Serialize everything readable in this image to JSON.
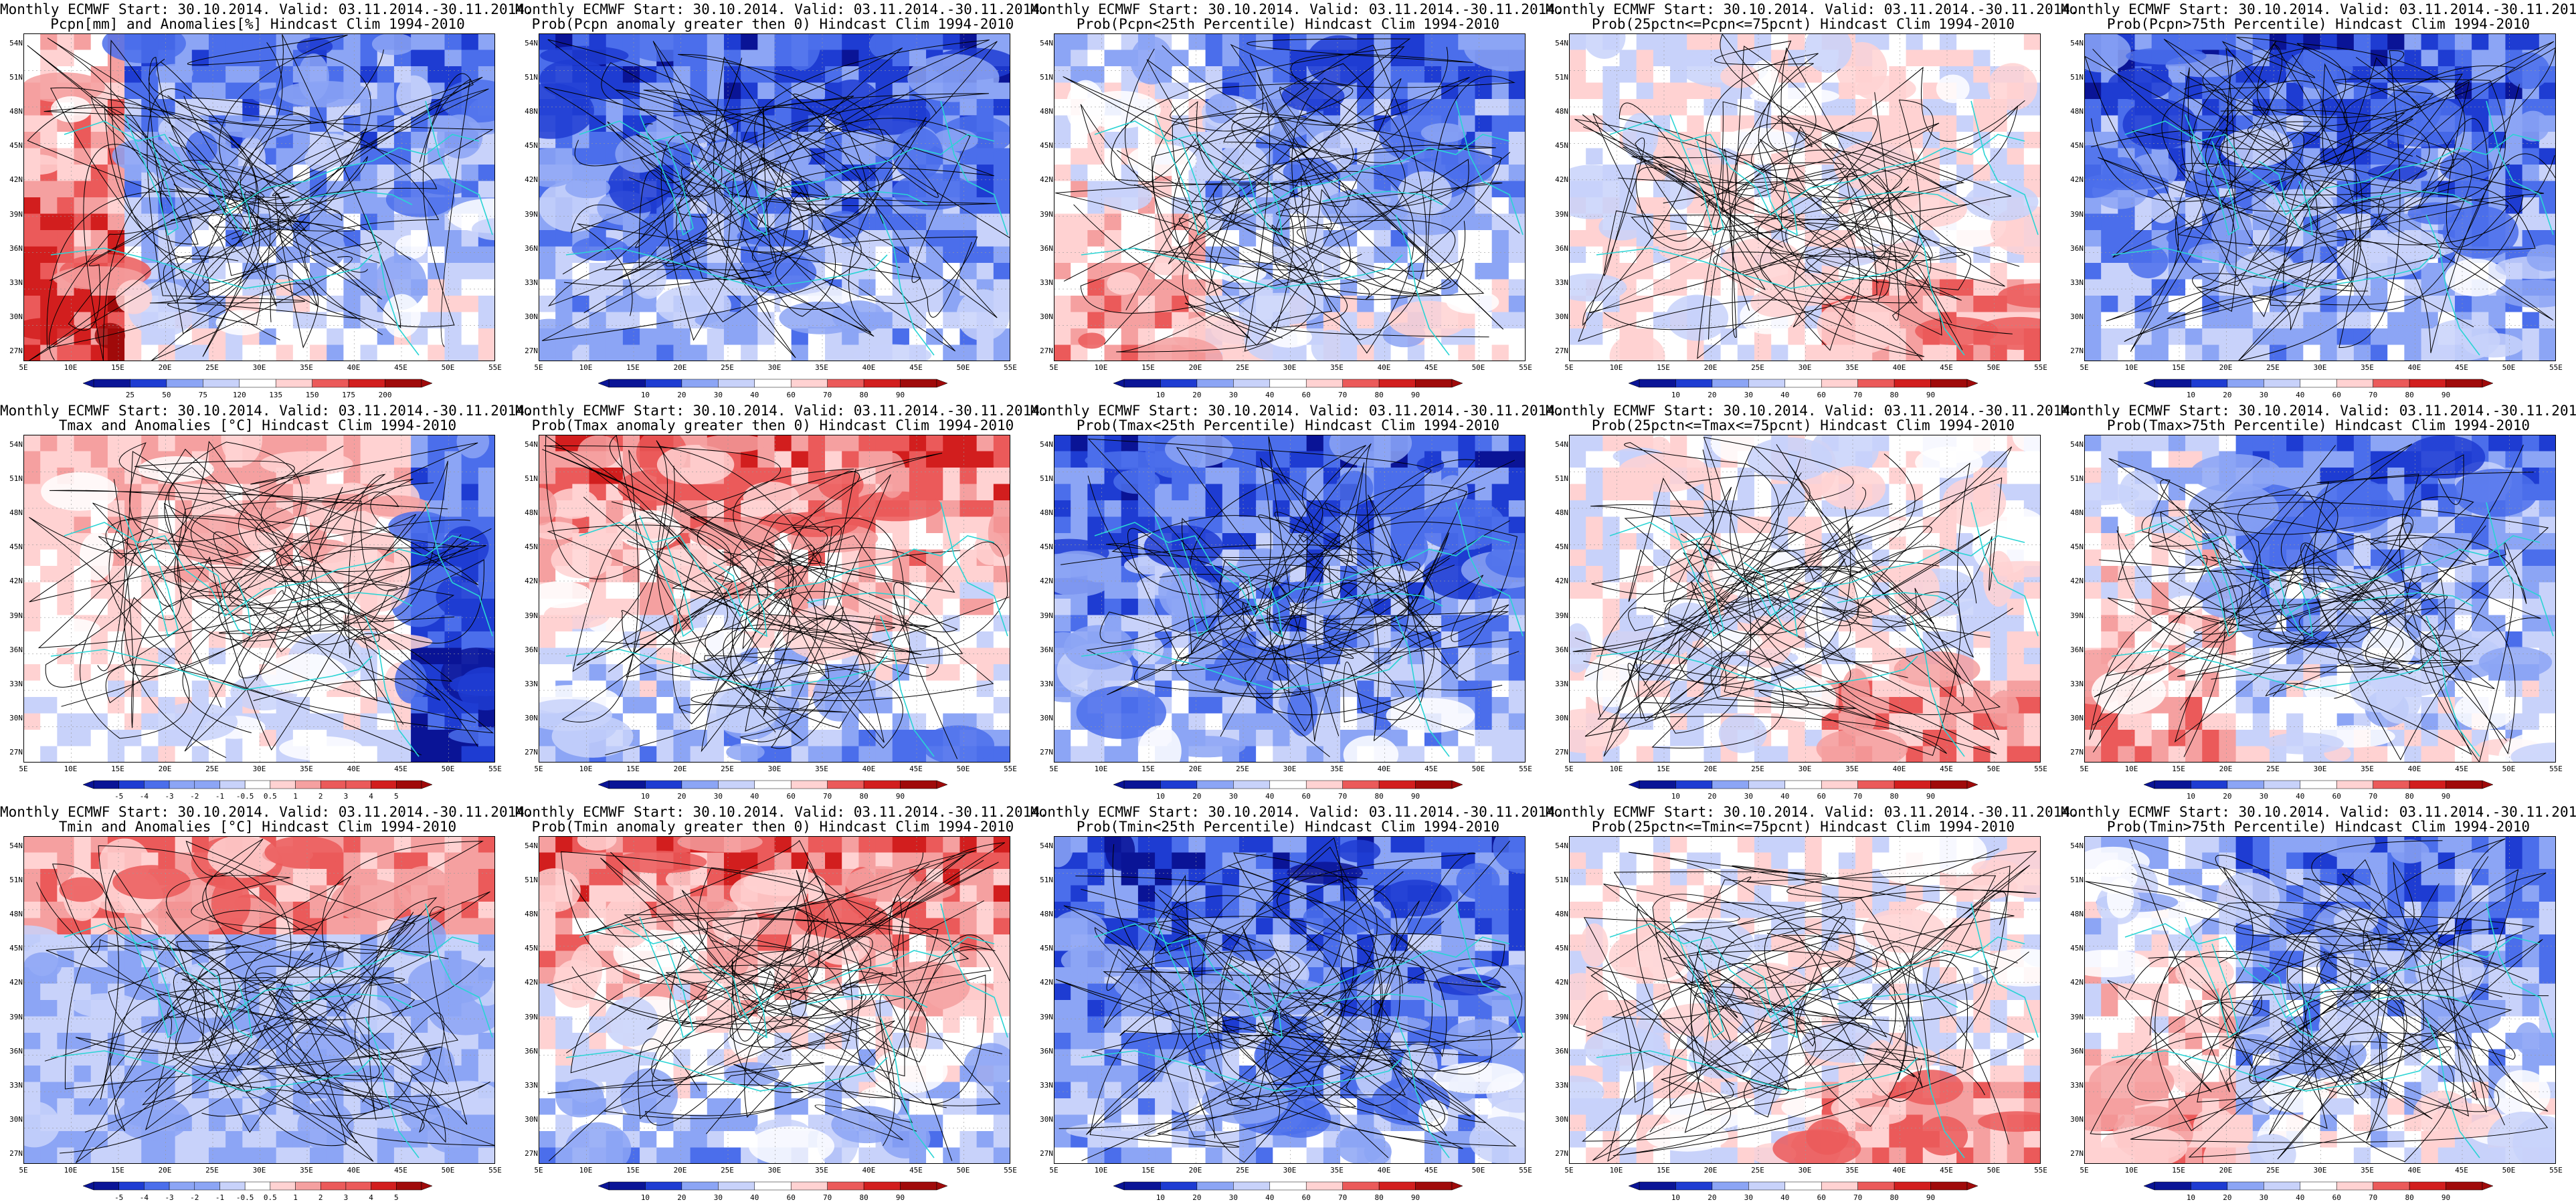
{
  "header_line": "Monthly ECMWF Start: 30.10.2014. Valid: 03.11.2014.-30.11.2014.",
  "lat_ticks": [
    "54N",
    "51N",
    "48N",
    "45N",
    "42N",
    "39N",
    "36N",
    "33N",
    "30N",
    "27N"
  ],
  "lon_ticks": [
    "5E",
    "10E",
    "15E",
    "20E",
    "25E",
    "30E",
    "35E",
    "40E",
    "45E",
    "50E",
    "55E"
  ],
  "colors": {
    "prob_scale": [
      "#0a1496",
      "#1e3cd2",
      "#4b6eeb",
      "#8ca5f5",
      "#c8d2fa",
      "#ffffff",
      "#ffd2d2",
      "#f5a0a0",
      "#eb5a5a",
      "#d21e1e",
      "#a00a0a"
    ],
    "coast": "#2ad4d4",
    "contour": "#000000"
  },
  "rows": [
    {
      "panels": [
        {
          "subtitle": "Pcpn[mm] and Anomalies[%] Hindcast Clim 1994-2010",
          "scheme": "pcpn",
          "legend": [
            "25",
            "50",
            "75",
            "120",
            "135",
            "150",
            "175",
            "200"
          ]
        },
        {
          "subtitle": "Prob(Pcpn anomaly greater then 0) Hindcast Clim 1994-2010",
          "scheme": "prob_low",
          "legend": [
            "10",
            "20",
            "30",
            "40",
            "60",
            "70",
            "80",
            "90"
          ]
        },
        {
          "subtitle": "Prob(Pcpn<25th Percentile) Hindcast Clim 1994-2010",
          "scheme": "prob_mid",
          "legend": [
            "10",
            "20",
            "30",
            "40",
            "60",
            "70",
            "80",
            "90"
          ]
        },
        {
          "subtitle": "Prob(25pctn<=Pcpn<=75pcnt) Hindcast Clim 1994-2010",
          "scheme": "prob_neutral",
          "legend": [
            "10",
            "20",
            "30",
            "40",
            "60",
            "70",
            "80",
            "90"
          ]
        },
        {
          "subtitle": "Prob(Pcpn>75th Percentile) Hindcast Clim 1994-2010",
          "scheme": "prob_low",
          "legend": [
            "10",
            "20",
            "30",
            "40",
            "60",
            "70",
            "80",
            "90"
          ]
        }
      ]
    },
    {
      "panels": [
        {
          "subtitle": "Tmax and Anomalies [°C] Hindcast Clim 1994-2010",
          "scheme": "anom_warm",
          "legend": [
            "-5",
            "-4",
            "-3",
            "-2",
            "-1",
            "-0.5",
            "0.5",
            "1",
            "2",
            "3",
            "4",
            "5"
          ]
        },
        {
          "subtitle": "Prob(Tmax anomaly greater then 0) Hindcast Clim 1994-2010",
          "scheme": "prob_high",
          "legend": [
            "10",
            "20",
            "30",
            "40",
            "60",
            "70",
            "80",
            "90"
          ]
        },
        {
          "subtitle": "Prob(Tmax<25th Percentile) Hindcast Clim 1994-2010",
          "scheme": "prob_low",
          "legend": [
            "10",
            "20",
            "30",
            "40",
            "60",
            "70",
            "80",
            "90"
          ]
        },
        {
          "subtitle": "Prob(25pctn<=Tmax<=75pcnt) Hindcast Clim 1994-2010",
          "scheme": "prob_neutral",
          "legend": [
            "10",
            "20",
            "30",
            "40",
            "60",
            "70",
            "80",
            "90"
          ]
        },
        {
          "subtitle": "Prob(Tmax>75th Percentile) Hindcast Clim 1994-2010",
          "scheme": "prob_mid",
          "legend": [
            "10",
            "20",
            "30",
            "40",
            "60",
            "70",
            "80",
            "90"
          ]
        }
      ]
    },
    {
      "panels": [
        {
          "subtitle": "Tmin and Anomalies [°C] Hindcast Clim 1994-2010",
          "scheme": "anom_mixed",
          "legend": [
            "-5",
            "-4",
            "-3",
            "-2",
            "-1",
            "-0.5",
            "0.5",
            "1",
            "2",
            "3",
            "4",
            "5"
          ]
        },
        {
          "subtitle": "Prob(Tmin anomaly greater then 0) Hindcast Clim 1994-2010",
          "scheme": "prob_high",
          "legend": [
            "10",
            "20",
            "30",
            "40",
            "60",
            "70",
            "80",
            "90"
          ]
        },
        {
          "subtitle": "Prob(Tmin<25th Percentile) Hindcast Clim 1994-2010",
          "scheme": "prob_low",
          "legend": [
            "10",
            "20",
            "30",
            "40",
            "60",
            "70",
            "80",
            "90"
          ]
        },
        {
          "subtitle": "Prob(25pctn<=Tmin<=75pcnt) Hindcast Clim 1994-2010",
          "scheme": "prob_neutral",
          "legend": [
            "10",
            "20",
            "30",
            "40",
            "60",
            "70",
            "80",
            "90"
          ]
        },
        {
          "subtitle": "Prob(Tmin>75th Percentile) Hindcast Clim 1994-2010",
          "scheme": "prob_mid",
          "legend": [
            "10",
            "20",
            "30",
            "40",
            "60",
            "70",
            "80",
            "90"
          ]
        }
      ]
    }
  ]
}
